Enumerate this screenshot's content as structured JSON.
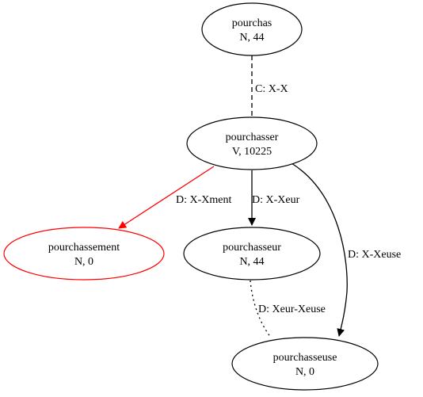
{
  "colors": {
    "default": "#000000",
    "highlight": "#ff0000",
    "background": "#ffffff"
  },
  "nodes": [
    {
      "id": "pourchas",
      "word": "pourchas",
      "info": "N, 44",
      "color": "#000000"
    },
    {
      "id": "pourchasser",
      "word": "pourchasser",
      "info": "V, 10225",
      "color": "#000000"
    },
    {
      "id": "pourchassement",
      "word": "pourchassement",
      "info": "N, 0",
      "color": "#ff0000"
    },
    {
      "id": "pourchasseur",
      "word": "pourchasseur",
      "info": "N, 44",
      "color": "#000000"
    },
    {
      "id": "pourchasseuse",
      "word": "pourchasseuse",
      "info": "N, 0",
      "color": "#000000"
    }
  ],
  "edges": [
    {
      "id": "e1",
      "from": "pourchas",
      "to": "pourchasser",
      "label": "C: X-X",
      "style": "dashed",
      "arrow": false,
      "color": "#000000"
    },
    {
      "id": "e2",
      "from": "pourchasser",
      "to": "pourchassement",
      "label": "D: X-Xment",
      "style": "solid",
      "arrow": true,
      "color": "#ff0000"
    },
    {
      "id": "e3",
      "from": "pourchasser",
      "to": "pourchasseur",
      "label": "D: X-Xeur",
      "style": "solid",
      "arrow": true,
      "color": "#000000"
    },
    {
      "id": "e4",
      "from": "pourchasser",
      "to": "pourchasseuse",
      "label": "D: X-Xeuse",
      "style": "solid",
      "arrow": true,
      "color": "#000000"
    },
    {
      "id": "e5",
      "from": "pourchasseur",
      "to": "pourchasseuse",
      "label": "D: Xeur-Xeuse",
      "style": "dotted",
      "arrow": false,
      "color": "#000000"
    }
  ]
}
